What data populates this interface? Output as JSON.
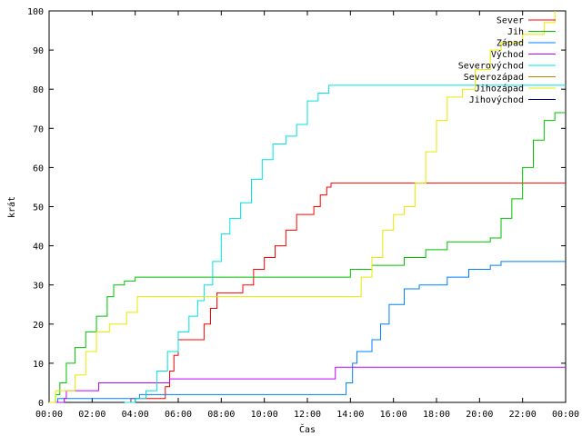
{
  "chart_data": {
    "type": "line",
    "title": "",
    "xlabel": "Čas",
    "ylabel": "krát",
    "xlim": [
      0,
      24
    ],
    "ylim": [
      0,
      100
    ],
    "grid": false,
    "legend_position": "top-right",
    "x_tick_labels": [
      "00:00",
      "02:00",
      "04:00",
      "06:00",
      "08:00",
      "10:00",
      "12:00",
      "14:00",
      "16:00",
      "18:00",
      "20:00",
      "22:00",
      "00:00"
    ],
    "y_tick_labels": [
      "0",
      "10",
      "20",
      "30",
      "40",
      "50",
      "60",
      "70",
      "80",
      "90",
      "100"
    ],
    "series": [
      {
        "name": "Sever",
        "color": "#ff0000",
        "points": [
          [
            3.7,
            0
          ],
          [
            3.8,
            1
          ],
          [
            5.3,
            1
          ],
          [
            5.4,
            4
          ],
          [
            5.6,
            8
          ],
          [
            5.8,
            12
          ],
          [
            6.0,
            16
          ],
          [
            6.9,
            16
          ],
          [
            7.2,
            20
          ],
          [
            7.5,
            24
          ],
          [
            7.8,
            28
          ],
          [
            8.8,
            28
          ],
          [
            9.0,
            30
          ],
          [
            9.5,
            34
          ],
          [
            10.0,
            37
          ],
          [
            10.5,
            40
          ],
          [
            11.0,
            44
          ],
          [
            11.5,
            48
          ],
          [
            12.3,
            50
          ],
          [
            12.6,
            53
          ],
          [
            12.9,
            55
          ],
          [
            13.1,
            56
          ],
          [
            24,
            56
          ]
        ]
      },
      {
        "name": "Jih",
        "color": "#00c000",
        "points": [
          [
            0,
            0
          ],
          [
            0.3,
            2
          ],
          [
            0.5,
            5
          ],
          [
            0.8,
            10
          ],
          [
            1.2,
            14
          ],
          [
            1.7,
            18
          ],
          [
            2.2,
            22
          ],
          [
            2.7,
            27
          ],
          [
            3.0,
            30
          ],
          [
            3.5,
            31
          ],
          [
            4.0,
            32
          ],
          [
            13.5,
            32
          ],
          [
            14.0,
            34
          ],
          [
            15.0,
            35
          ],
          [
            16.5,
            37
          ],
          [
            17.5,
            39
          ],
          [
            18.5,
            41
          ],
          [
            20.5,
            42
          ],
          [
            21.0,
            47
          ],
          [
            21.5,
            52
          ],
          [
            22.0,
            60
          ],
          [
            22.5,
            67
          ],
          [
            23.0,
            72
          ],
          [
            23.5,
            74
          ],
          [
            24,
            74
          ]
        ]
      },
      {
        "name": "Západ",
        "color": "#0080ff",
        "points": [
          [
            0,
            0
          ],
          [
            0.4,
            1
          ],
          [
            4.0,
            1
          ],
          [
            4.2,
            2
          ],
          [
            13.6,
            2
          ],
          [
            13.8,
            5
          ],
          [
            14.1,
            10
          ],
          [
            14.3,
            13
          ],
          [
            15.0,
            16
          ],
          [
            15.4,
            20
          ],
          [
            15.8,
            25
          ],
          [
            16.5,
            29
          ],
          [
            17.2,
            30
          ],
          [
            18.5,
            32
          ],
          [
            19.5,
            34
          ],
          [
            20.5,
            35
          ],
          [
            21.0,
            36
          ],
          [
            24,
            36
          ]
        ]
      },
      {
        "name": "Východ",
        "color": "#c000ff",
        "points": [
          [
            0,
            0
          ],
          [
            0.7,
            1
          ],
          [
            0.8,
            3
          ],
          [
            2.2,
            3
          ],
          [
            2.3,
            5
          ],
          [
            5.5,
            5
          ],
          [
            5.6,
            6
          ],
          [
            13.0,
            6
          ],
          [
            13.3,
            9
          ],
          [
            24,
            9
          ]
        ]
      },
      {
        "name": "Severovýchod",
        "color": "#00e0e0",
        "points": [
          [
            3.5,
            0
          ],
          [
            4.0,
            1
          ],
          [
            4.5,
            3
          ],
          [
            5.0,
            8
          ],
          [
            5.5,
            13
          ],
          [
            6.0,
            18
          ],
          [
            6.5,
            22
          ],
          [
            6.9,
            26
          ],
          [
            7.2,
            30
          ],
          [
            7.6,
            36
          ],
          [
            8.0,
            43
          ],
          [
            8.4,
            47
          ],
          [
            8.9,
            51
          ],
          [
            9.4,
            57
          ],
          [
            9.9,
            62
          ],
          [
            10.4,
            66
          ],
          [
            11.0,
            68
          ],
          [
            11.5,
            71
          ],
          [
            12.0,
            77
          ],
          [
            12.5,
            79
          ],
          [
            13.0,
            81
          ],
          [
            24,
            81
          ]
        ]
      },
      {
        "name": "Severozápad",
        "color": "#c08000",
        "points": []
      },
      {
        "name": "Jihozápad",
        "color": "#e8e800",
        "points": [
          [
            0,
            0
          ],
          [
            0.3,
            3
          ],
          [
            1.2,
            7
          ],
          [
            1.7,
            13
          ],
          [
            2.2,
            18
          ],
          [
            2.8,
            20
          ],
          [
            3.6,
            23
          ],
          [
            4.1,
            27
          ],
          [
            14.1,
            27
          ],
          [
            14.5,
            32
          ],
          [
            15.0,
            37
          ],
          [
            15.5,
            44
          ],
          [
            16.0,
            48
          ],
          [
            16.5,
            50
          ],
          [
            17.0,
            56
          ],
          [
            17.5,
            64
          ],
          [
            18.0,
            72
          ],
          [
            18.5,
            78
          ],
          [
            19.2,
            80
          ],
          [
            19.8,
            85
          ],
          [
            20.5,
            90
          ],
          [
            21.0,
            92
          ],
          [
            22.0,
            94
          ],
          [
            23.0,
            97
          ],
          [
            23.5,
            100
          ]
        ]
      },
      {
        "name": "Jihovýchod",
        "color": "#000080",
        "points": []
      }
    ]
  }
}
